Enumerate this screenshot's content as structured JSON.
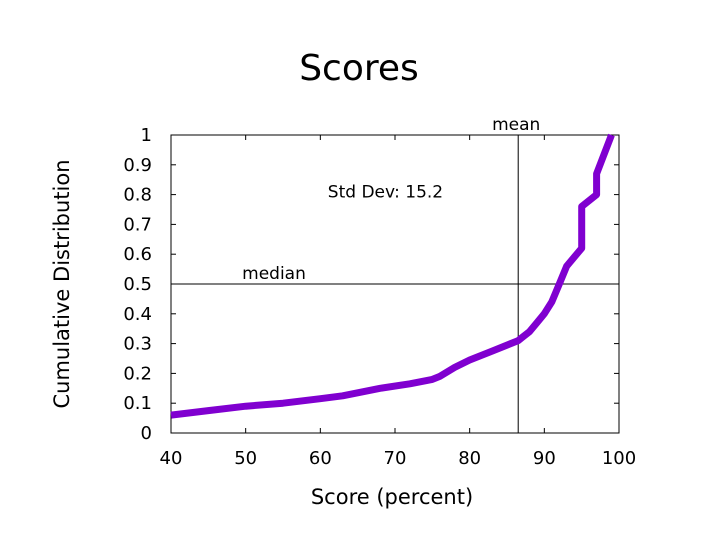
{
  "chart_data": {
    "type": "line",
    "title": "Scores",
    "xlabel": "Score (percent)",
    "ylabel": "Cumulative Distribution",
    "xlim": [
      40,
      100
    ],
    "ylim": [
      0,
      1
    ],
    "xticks": [
      "40",
      "50",
      "60",
      "70",
      "80",
      "90",
      "100"
    ],
    "yticks": [
      "0",
      "0.1",
      "0.2",
      "0.3",
      "0.4",
      "0.5",
      "0.6",
      "0.7",
      "0.8",
      "0.9",
      "1"
    ],
    "grid": false,
    "series": [
      {
        "color": "#8000d0",
        "points": [
          [
            40,
            0.06
          ],
          [
            45,
            0.075
          ],
          [
            50,
            0.09
          ],
          [
            55,
            0.1
          ],
          [
            60,
            0.115
          ],
          [
            63,
            0.125
          ],
          [
            65,
            0.135
          ],
          [
            68,
            0.15
          ],
          [
            72,
            0.165
          ],
          [
            75,
            0.18
          ],
          [
            76,
            0.19
          ],
          [
            78,
            0.22
          ],
          [
            80,
            0.245
          ],
          [
            83,
            0.275
          ],
          [
            86.5,
            0.31
          ],
          [
            87,
            0.32
          ],
          [
            88,
            0.34
          ],
          [
            89,
            0.37
          ],
          [
            90,
            0.4
          ],
          [
            91,
            0.44
          ],
          [
            92,
            0.5
          ],
          [
            93,
            0.56
          ],
          [
            95,
            0.62
          ],
          [
            95,
            0.76
          ],
          [
            97,
            0.8
          ],
          [
            97,
            0.87
          ],
          [
            99,
            1.0
          ]
        ]
      }
    ],
    "reference_lines": [
      {
        "orientation": "vertical",
        "x": 86.5,
        "label": "mean"
      },
      {
        "orientation": "horizontal",
        "y": 0.5,
        "label": "median"
      }
    ],
    "annotations": [
      {
        "text": "Std Dev: 15.2",
        "x": 61,
        "y": 0.79
      }
    ]
  }
}
